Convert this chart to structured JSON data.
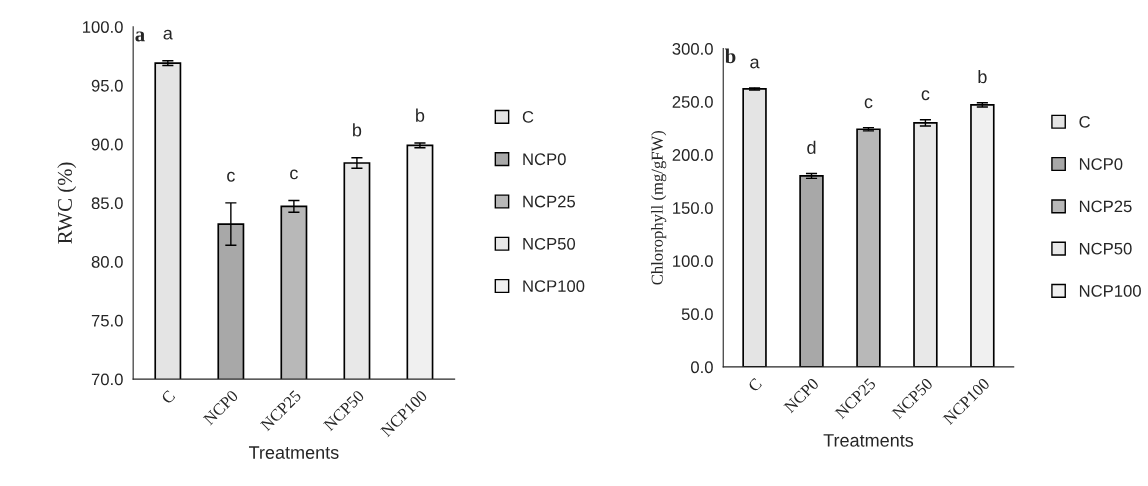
{
  "chart_data": [
    {
      "type": "bar",
      "ylabel": "RWC (%)",
      "xlabel": "Treatments",
      "categories": [
        "C",
        "NCP0",
        "NCP25",
        "NCP50",
        "NCP100"
      ],
      "series": [
        {
          "name": "C",
          "color": "#e4e4e4",
          "values": [
            96.9,
            null,
            null,
            null,
            null
          ],
          "errors": [
            0.2,
            null,
            null,
            null,
            null
          ]
        },
        {
          "name": "NCP0",
          "color": "#a8a8a8",
          "values": [
            null,
            83.2,
            null,
            null,
            null
          ],
          "errors": [
            null,
            1.8,
            null,
            null,
            null
          ]
        },
        {
          "name": "NCP25",
          "color": "#b8b8b8",
          "values": [
            null,
            null,
            84.7,
            null,
            null
          ],
          "errors": [
            null,
            null,
            0.5,
            null,
            null
          ]
        },
        {
          "name": "NCP50",
          "color": "#e8e8e8",
          "values": [
            null,
            null,
            null,
            88.4,
            null
          ],
          "errors": [
            null,
            null,
            null,
            0.45,
            null
          ]
        },
        {
          "name": "NCP100",
          "color": "#f0f0f0",
          "values": [
            null,
            null,
            null,
            null,
            89.9
          ],
          "errors": [
            null,
            null,
            null,
            null,
            0.2
          ]
        }
      ],
      "ylim": [
        70,
        100
      ],
      "yticks": [
        {
          "value": 70,
          "label": "70.0"
        },
        {
          "value": 75,
          "label": "75.0"
        },
        {
          "value": 80,
          "label": "80.0"
        },
        {
          "value": 85,
          "label": "85.0"
        },
        {
          "value": 90,
          "label": "90.0"
        },
        {
          "value": 95,
          "label": "95.0"
        },
        {
          "value": 100,
          "label": "100.0"
        }
      ],
      "annotations": [
        "a",
        "a",
        "c",
        "c",
        "b",
        "b"
      ],
      "grid": false,
      "legend": "right"
    },
    {
      "type": "bar",
      "ylabel": "Chlorophyll (mg/gFW)",
      "xlabel": "Treatments",
      "categories": [
        "C",
        "NCP0",
        "NCP25",
        "NCP50",
        "NCP100"
      ],
      "series": [
        {
          "name": "C",
          "color": "#e4e4e4",
          "values": [
            262,
            null,
            null,
            null,
            null
          ],
          "errors": [
            1,
            null,
            null,
            null,
            null
          ]
        },
        {
          "name": "NCP0",
          "color": "#a8a8a8",
          "values": [
            null,
            180,
            null,
            null,
            null
          ],
          "errors": [
            null,
            2.3,
            null,
            null,
            null
          ]
        },
        {
          "name": "NCP25",
          "color": "#b8b8b8",
          "values": [
            null,
            null,
            224,
            null,
            null
          ],
          "errors": [
            null,
            null,
            1.5,
            null,
            null
          ]
        },
        {
          "name": "NCP50",
          "color": "#e8e8e8",
          "values": [
            null,
            null,
            null,
            230,
            null
          ],
          "errors": [
            null,
            null,
            null,
            3,
            null
          ]
        },
        {
          "name": "NCP100",
          "color": "#f0f0f0",
          "values": [
            null,
            null,
            null,
            null,
            247
          ],
          "errors": [
            null,
            null,
            null,
            null,
            2
          ]
        }
      ],
      "ylim": [
        0,
        300
      ],
      "yticks": [
        {
          "value": 0,
          "label": "0.0"
        },
        {
          "value": 50,
          "label": "50.0"
        },
        {
          "value": 100,
          "label": "100.0"
        },
        {
          "value": 150,
          "label": "150.0"
        },
        {
          "value": 200,
          "label": "200.0"
        },
        {
          "value": 250,
          "label": "250.0"
        },
        {
          "value": 300,
          "label": "300.0"
        }
      ],
      "annotations": [
        "b",
        "a",
        "d",
        "c",
        "c",
        "b"
      ],
      "grid": false,
      "legend": "right"
    }
  ]
}
